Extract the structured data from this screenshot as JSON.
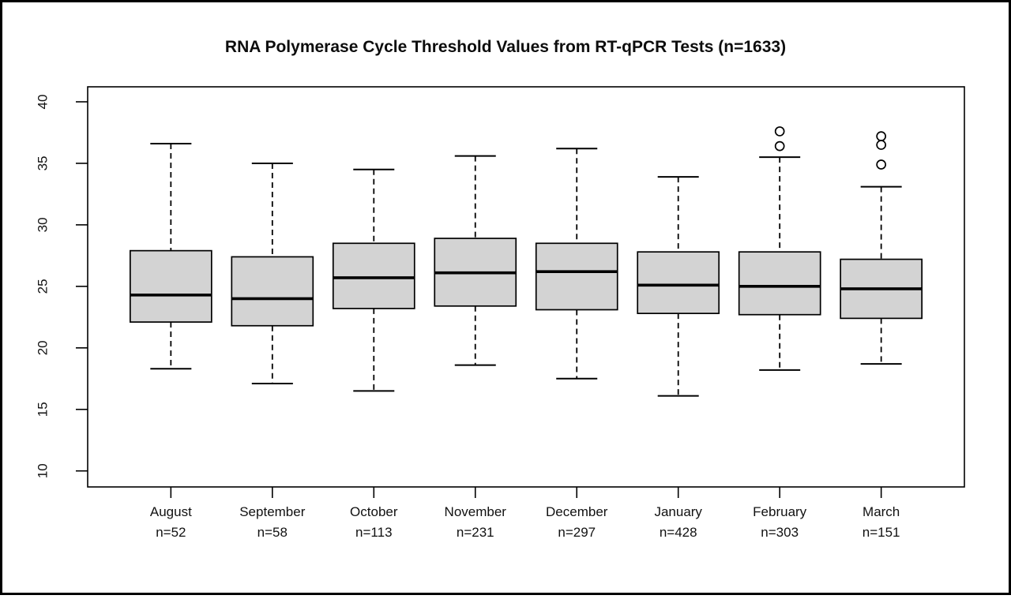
{
  "chart_data": {
    "type": "boxplot",
    "title": "RNA Polymerase Cycle Threshold Values from RT-qPCR Tests (n=1633)",
    "total_n": 1633,
    "xlabel": "",
    "ylabel": "",
    "ylim": [
      10,
      40
    ],
    "yticks": [
      "10",
      "15",
      "20",
      "25",
      "30",
      "35",
      "40"
    ],
    "grid": false,
    "legend": "none",
    "box_fill": "#d3d3d3",
    "box_stroke": "#000000",
    "median_color": "#000000",
    "groups": [
      {
        "label": "August",
        "sublabel": "n=52",
        "n": 52,
        "whisker_low": 18.3,
        "q1": 22.1,
        "median": 24.3,
        "q3": 27.9,
        "whisker_high": 36.6,
        "outliers": []
      },
      {
        "label": "September",
        "sublabel": "n=58",
        "n": 58,
        "whisker_low": 17.1,
        "q1": 21.8,
        "median": 24.0,
        "q3": 27.4,
        "whisker_high": 35.0,
        "outliers": []
      },
      {
        "label": "October",
        "sublabel": "n=113",
        "n": 113,
        "whisker_low": 16.5,
        "q1": 23.2,
        "median": 25.7,
        "q3": 28.5,
        "whisker_high": 34.5,
        "outliers": []
      },
      {
        "label": "November",
        "sublabel": "n=231",
        "n": 231,
        "whisker_low": 18.6,
        "q1": 23.4,
        "median": 26.1,
        "q3": 28.9,
        "whisker_high": 35.6,
        "outliers": []
      },
      {
        "label": "December",
        "sublabel": "n=297",
        "n": 297,
        "whisker_low": 17.5,
        "q1": 23.1,
        "median": 26.2,
        "q3": 28.5,
        "whisker_high": 36.2,
        "outliers": []
      },
      {
        "label": "January",
        "sublabel": "n=428",
        "n": 428,
        "whisker_low": 16.1,
        "q1": 22.8,
        "median": 25.1,
        "q3": 27.8,
        "whisker_high": 33.9,
        "outliers": []
      },
      {
        "label": "February",
        "sublabel": "n=303",
        "n": 303,
        "whisker_low": 18.2,
        "q1": 22.7,
        "median": 25.0,
        "q3": 27.8,
        "whisker_high": 35.5,
        "outliers": [
          36.4,
          37.6
        ]
      },
      {
        "label": "March",
        "sublabel": "n=151",
        "n": 151,
        "whisker_low": 18.7,
        "q1": 22.4,
        "median": 24.8,
        "q3": 27.2,
        "whisker_high": 33.1,
        "outliers": [
          34.9,
          36.5,
          37.2
        ]
      }
    ]
  }
}
